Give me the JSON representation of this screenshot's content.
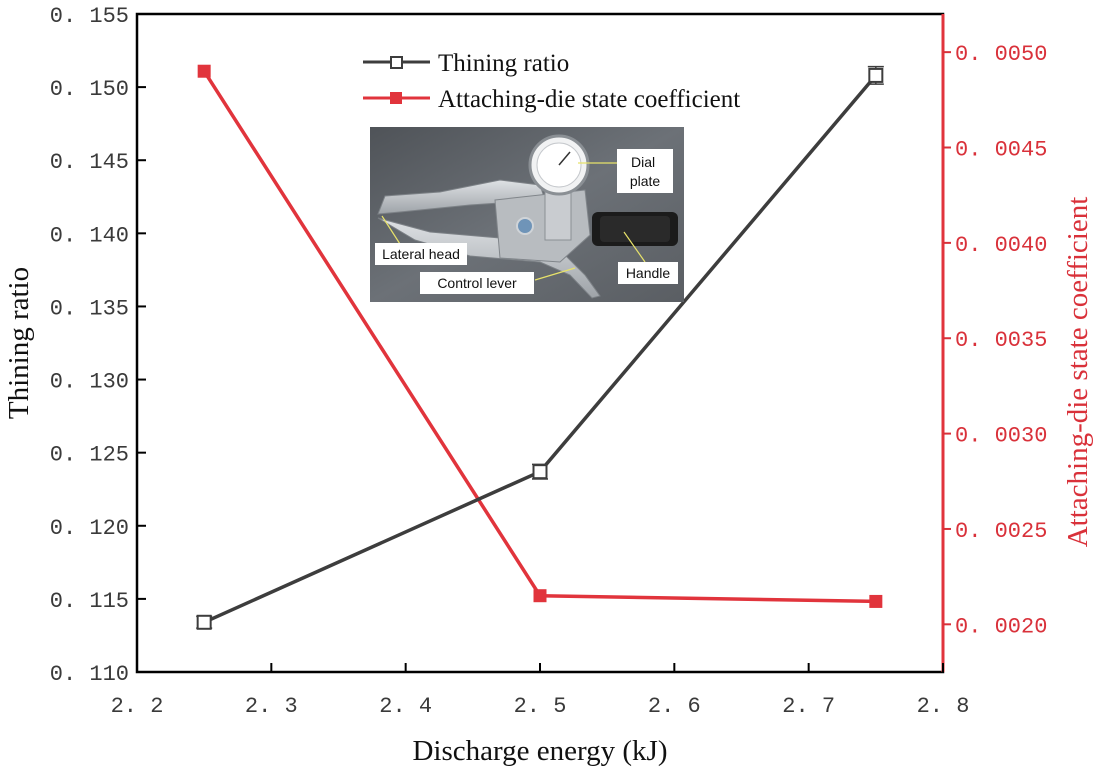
{
  "colors": {
    "series_thinning": "#3d3d3d",
    "series_attaching": "#e1343c",
    "right_axis": "#d9313a"
  },
  "chart_data": {
    "type": "line",
    "xlabel": "Discharge energy (kJ)",
    "ylabel": "Thining ratio",
    "y2label": "Attaching-die state coefficient",
    "xlim": [
      2.2,
      2.8
    ],
    "ylim": [
      0.11,
      0.155
    ],
    "y2lim": [
      0.00175,
      0.0052
    ],
    "x_ticks": [
      "2. 2",
      "2. 3",
      "2. 4",
      "2. 5",
      "2. 6",
      "2. 7",
      "2. 8"
    ],
    "y_ticks": [
      "0. 155",
      "0. 150",
      "0. 145",
      "0. 140",
      "0. 135",
      "0. 130",
      "0. 125",
      "0. 120",
      "0. 115",
      "0. 110"
    ],
    "y2_ticks": [
      "0. 0050",
      "0. 0045",
      "0. 0040",
      "0. 0035",
      "0. 0030",
      "0. 0025",
      "0. 0020"
    ],
    "legend_position": "top-center",
    "series": [
      {
        "name": "Thining ratio",
        "axis": "left",
        "marker": "open-square",
        "x": [
          2.25,
          2.5,
          2.75
        ],
        "y": [
          0.1134,
          0.1237,
          0.1508
        ],
        "error": [
          0.0004,
          0.0005,
          0.0006
        ]
      },
      {
        "name": "Attaching-die state coefficient",
        "axis": "right",
        "marker": "filled-square",
        "x": [
          2.25,
          2.5,
          2.75
        ],
        "y": [
          0.0049,
          0.00215,
          0.00212
        ]
      }
    ]
  },
  "inset_photo": {
    "labels": {
      "dial": "Dial\nplate",
      "lateral_head": "Lateral head",
      "control_lever": "Control lever",
      "handle": "Handle"
    }
  }
}
